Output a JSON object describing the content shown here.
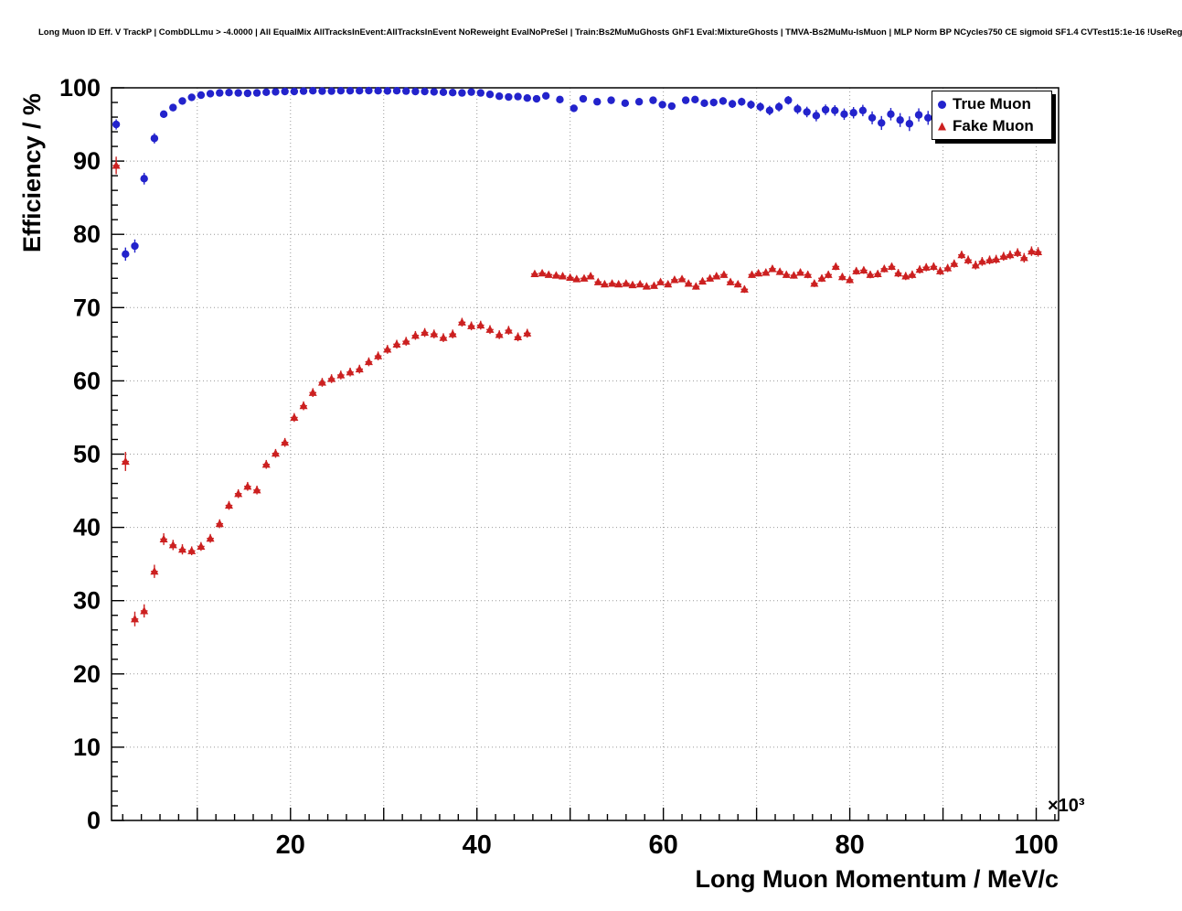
{
  "title": "Long Muon ID Eff. V TrackP | CombDLLmu > -4.0000 | All EqualMix AllTracksInEvent:AllTracksInEvent NoReweight EvalNoPreSel | Train:Bs2MuMuGhosts GhF1 Eval:MixtureGhosts | TMVA-Bs2MuMu-IsMuon | MLP Norm BP NCycles750 CE sigmoid SF1.4 CVTest15:1e-16 !UseReg",
  "chart_data": {
    "type": "scatter",
    "title": "",
    "xlabel": "Long Muon Momentum / MeV/c",
    "ylabel": "Efficiency / %",
    "x_multiplier": "×10³",
    "xlim": [
      0.8,
      102.4
    ],
    "ylim": [
      0,
      100
    ],
    "grid": true,
    "x_grid": [
      10,
      20,
      30,
      40,
      50,
      60,
      70,
      80,
      90,
      100
    ],
    "y_grid": [
      10,
      20,
      30,
      40,
      50,
      60,
      70,
      80,
      90
    ],
    "x_tick_labels": [
      20,
      40,
      60,
      80,
      100
    ],
    "y_tick_labels": [
      0,
      10,
      20,
      30,
      40,
      50,
      60,
      70,
      80,
      90,
      100
    ],
    "legend_position": "top-right",
    "series": [
      {
        "name": "True Muon",
        "marker": "circle",
        "color": "#2323cc",
        "points": [
          [
            1.3,
            95.0,
            0.7
          ],
          [
            2.3,
            77.3,
            0.9
          ],
          [
            3.3,
            78.4,
            0.9
          ],
          [
            4.3,
            87.6,
            0.8
          ],
          [
            5.4,
            93.1,
            0.7
          ],
          [
            6.4,
            96.4,
            0.5
          ],
          [
            7.4,
            97.3,
            0.4
          ],
          [
            8.4,
            98.2,
            0.35
          ],
          [
            9.4,
            98.7,
            0.3
          ],
          [
            10.4,
            99.0,
            0.25
          ],
          [
            11.4,
            99.2,
            0.2
          ],
          [
            12.4,
            99.3,
            0.18
          ],
          [
            13.4,
            99.35,
            0.16
          ],
          [
            14.4,
            99.3,
            0.15
          ],
          [
            15.4,
            99.25,
            0.15
          ],
          [
            16.4,
            99.3,
            0.15
          ],
          [
            17.4,
            99.4,
            0.14
          ],
          [
            18.4,
            99.45,
            0.13
          ],
          [
            19.4,
            99.5,
            0.12
          ],
          [
            20.4,
            99.5,
            0.12
          ],
          [
            21.4,
            99.55,
            0.12
          ],
          [
            22.4,
            99.6,
            0.11
          ],
          [
            23.4,
            99.55,
            0.11
          ],
          [
            24.4,
            99.55,
            0.11
          ],
          [
            25.4,
            99.6,
            0.11
          ],
          [
            26.4,
            99.6,
            0.11
          ],
          [
            27.4,
            99.6,
            0.11
          ],
          [
            28.4,
            99.62,
            0.11
          ],
          [
            29.4,
            99.6,
            0.12
          ],
          [
            30.4,
            99.58,
            0.12
          ],
          [
            31.4,
            99.6,
            0.12
          ],
          [
            32.4,
            99.55,
            0.13
          ],
          [
            33.4,
            99.5,
            0.13
          ],
          [
            34.4,
            99.5,
            0.14
          ],
          [
            35.4,
            99.45,
            0.15
          ],
          [
            36.4,
            99.4,
            0.16
          ],
          [
            37.4,
            99.35,
            0.17
          ],
          [
            38.4,
            99.3,
            0.18
          ],
          [
            39.4,
            99.42,
            0.18
          ],
          [
            40.4,
            99.3,
            0.2
          ],
          [
            41.4,
            99.1,
            0.22
          ],
          [
            42.4,
            98.85,
            0.25
          ],
          [
            43.4,
            98.75,
            0.27
          ],
          [
            44.4,
            98.8,
            0.28
          ],
          [
            45.4,
            98.6,
            0.3
          ],
          [
            46.4,
            98.5,
            0.32
          ],
          [
            47.4,
            98.9,
            0.3
          ],
          [
            48.9,
            98.4,
            0.35
          ],
          [
            50.4,
            97.2,
            0.45
          ],
          [
            51.4,
            98.5,
            0.4
          ],
          [
            52.9,
            98.1,
            0.42
          ],
          [
            54.4,
            98.3,
            0.42
          ],
          [
            55.9,
            97.9,
            0.45
          ],
          [
            57.4,
            98.1,
            0.45
          ],
          [
            58.9,
            98.3,
            0.45
          ],
          [
            59.9,
            97.7,
            0.5
          ],
          [
            60.9,
            97.5,
            0.5
          ],
          [
            62.4,
            98.3,
            0.48
          ],
          [
            63.4,
            98.4,
            0.48
          ],
          [
            64.4,
            97.9,
            0.52
          ],
          [
            65.4,
            98.0,
            0.52
          ],
          [
            66.4,
            98.2,
            0.52
          ],
          [
            67.4,
            97.8,
            0.55
          ],
          [
            68.4,
            98.1,
            0.55
          ],
          [
            69.4,
            97.7,
            0.58
          ],
          [
            70.4,
            97.4,
            0.6
          ],
          [
            71.4,
            96.9,
            0.65
          ],
          [
            72.4,
            97.4,
            0.63
          ],
          [
            73.4,
            98.3,
            0.58
          ],
          [
            74.4,
            97.1,
            0.68
          ],
          [
            75.4,
            96.7,
            0.72
          ],
          [
            76.4,
            96.2,
            0.78
          ],
          [
            77.4,
            97.0,
            0.72
          ],
          [
            78.4,
            96.9,
            0.73
          ],
          [
            79.4,
            96.4,
            0.78
          ],
          [
            80.4,
            96.6,
            0.78
          ],
          [
            81.4,
            96.9,
            0.78
          ],
          [
            82.4,
            95.9,
            0.88
          ],
          [
            83.4,
            95.2,
            0.95
          ],
          [
            84.4,
            96.4,
            0.85
          ],
          [
            85.4,
            95.6,
            0.95
          ],
          [
            86.4,
            95.1,
            1.0
          ],
          [
            87.4,
            96.3,
            0.9
          ],
          [
            88.4,
            95.9,
            0.95
          ]
        ]
      },
      {
        "name": "Fake Muon",
        "marker": "triangle",
        "color": "#cc2020",
        "points": [
          [
            1.3,
            89.4,
            1.2
          ],
          [
            2.3,
            49.0,
            1.3
          ],
          [
            3.3,
            27.5,
            1.0
          ],
          [
            4.3,
            28.6,
            0.9
          ],
          [
            5.4,
            34.0,
            0.9
          ],
          [
            6.4,
            38.4,
            0.8
          ],
          [
            7.4,
            37.6,
            0.7
          ],
          [
            8.4,
            37.0,
            0.7
          ],
          [
            9.4,
            36.8,
            0.6
          ],
          [
            10.4,
            37.4,
            0.6
          ],
          [
            11.4,
            38.5,
            0.6
          ],
          [
            12.4,
            40.5,
            0.6
          ],
          [
            13.4,
            43.0,
            0.6
          ],
          [
            14.4,
            44.6,
            0.6
          ],
          [
            15.4,
            45.6,
            0.6
          ],
          [
            16.4,
            45.1,
            0.6
          ],
          [
            17.4,
            48.6,
            0.6
          ],
          [
            18.4,
            50.1,
            0.6
          ],
          [
            19.4,
            51.6,
            0.6
          ],
          [
            20.4,
            55.0,
            0.6
          ],
          [
            21.4,
            56.6,
            0.6
          ],
          [
            22.4,
            58.4,
            0.6
          ],
          [
            23.4,
            59.8,
            0.6
          ],
          [
            24.4,
            60.3,
            0.6
          ],
          [
            25.4,
            60.8,
            0.6
          ],
          [
            26.4,
            61.2,
            0.6
          ],
          [
            27.4,
            61.6,
            0.6
          ],
          [
            28.4,
            62.6,
            0.6
          ],
          [
            29.4,
            63.4,
            0.6
          ],
          [
            30.4,
            64.3,
            0.6
          ],
          [
            31.4,
            65.0,
            0.6
          ],
          [
            32.4,
            65.4,
            0.6
          ],
          [
            33.4,
            66.2,
            0.6
          ],
          [
            34.4,
            66.6,
            0.6
          ],
          [
            35.4,
            66.4,
            0.6
          ],
          [
            36.4,
            65.9,
            0.6
          ],
          [
            37.4,
            66.4,
            0.6
          ],
          [
            38.4,
            68.0,
            0.6
          ],
          [
            39.4,
            67.5,
            0.6
          ],
          [
            40.4,
            67.6,
            0.6
          ],
          [
            41.4,
            67.0,
            0.6
          ],
          [
            42.4,
            66.3,
            0.6
          ],
          [
            43.4,
            66.9,
            0.6
          ],
          [
            44.4,
            66.0,
            0.6
          ],
          [
            45.4,
            66.5,
            0.6
          ],
          [
            46.2,
            74.6,
            0.4
          ],
          [
            47.0,
            74.7,
            0.4
          ],
          [
            47.7,
            74.5,
            0.4
          ],
          [
            48.5,
            74.4,
            0.4
          ],
          [
            49.2,
            74.3,
            0.4
          ],
          [
            50.0,
            74.1,
            0.4
          ],
          [
            50.7,
            73.9,
            0.4
          ],
          [
            51.5,
            74.0,
            0.4
          ],
          [
            52.2,
            74.3,
            0.4
          ],
          [
            53.0,
            73.5,
            0.4
          ],
          [
            53.7,
            73.2,
            0.4
          ],
          [
            54.5,
            73.3,
            0.4
          ],
          [
            55.2,
            73.2,
            0.4
          ],
          [
            56.0,
            73.3,
            0.4
          ],
          [
            56.7,
            73.1,
            0.4
          ],
          [
            57.5,
            73.2,
            0.4
          ],
          [
            58.2,
            72.9,
            0.4
          ],
          [
            59.0,
            73.0,
            0.4
          ],
          [
            59.7,
            73.5,
            0.4
          ],
          [
            60.5,
            73.2,
            0.4
          ],
          [
            61.2,
            73.8,
            0.4
          ],
          [
            62.0,
            73.9,
            0.4
          ],
          [
            62.7,
            73.3,
            0.4
          ],
          [
            63.5,
            72.9,
            0.45
          ],
          [
            64.2,
            73.6,
            0.45
          ],
          [
            65.0,
            74.0,
            0.45
          ],
          [
            65.7,
            74.3,
            0.45
          ],
          [
            66.5,
            74.5,
            0.45
          ],
          [
            67.2,
            73.5,
            0.45
          ],
          [
            68.0,
            73.2,
            0.45
          ],
          [
            68.7,
            72.5,
            0.5
          ],
          [
            69.5,
            74.5,
            0.45
          ],
          [
            70.2,
            74.7,
            0.45
          ],
          [
            71.0,
            74.8,
            0.45
          ],
          [
            71.7,
            75.3,
            0.45
          ],
          [
            72.5,
            74.9,
            0.45
          ],
          [
            73.2,
            74.5,
            0.45
          ],
          [
            74.0,
            74.4,
            0.45
          ],
          [
            74.7,
            74.8,
            0.45
          ],
          [
            75.5,
            74.5,
            0.5
          ],
          [
            76.2,
            73.3,
            0.5
          ],
          [
            77.0,
            74.0,
            0.5
          ],
          [
            77.7,
            74.5,
            0.5
          ],
          [
            78.5,
            75.6,
            0.5
          ],
          [
            79.2,
            74.2,
            0.5
          ],
          [
            80.0,
            73.8,
            0.5
          ],
          [
            80.7,
            75.0,
            0.5
          ],
          [
            81.5,
            75.1,
            0.5
          ],
          [
            82.2,
            74.5,
            0.5
          ],
          [
            83.0,
            74.6,
            0.5
          ],
          [
            83.7,
            75.3,
            0.5
          ],
          [
            84.5,
            75.6,
            0.5
          ],
          [
            85.2,
            74.7,
            0.55
          ],
          [
            86.0,
            74.3,
            0.55
          ],
          [
            86.7,
            74.5,
            0.55
          ],
          [
            87.5,
            75.2,
            0.55
          ],
          [
            88.2,
            75.5,
            0.55
          ],
          [
            89.0,
            75.6,
            0.55
          ],
          [
            89.7,
            75.0,
            0.55
          ],
          [
            90.5,
            75.4,
            0.55
          ],
          [
            91.2,
            76.0,
            0.55
          ],
          [
            92.0,
            77.2,
            0.55
          ],
          [
            92.7,
            76.5,
            0.6
          ],
          [
            93.5,
            75.8,
            0.6
          ],
          [
            94.2,
            76.3,
            0.6
          ],
          [
            95.0,
            76.5,
            0.6
          ],
          [
            95.7,
            76.6,
            0.6
          ],
          [
            96.5,
            77.0,
            0.6
          ],
          [
            97.2,
            77.2,
            0.6
          ],
          [
            98.0,
            77.5,
            0.6
          ],
          [
            98.7,
            76.8,
            0.65
          ],
          [
            99.5,
            77.7,
            0.65
          ],
          [
            100.2,
            77.6,
            0.65
          ]
        ]
      }
    ]
  }
}
